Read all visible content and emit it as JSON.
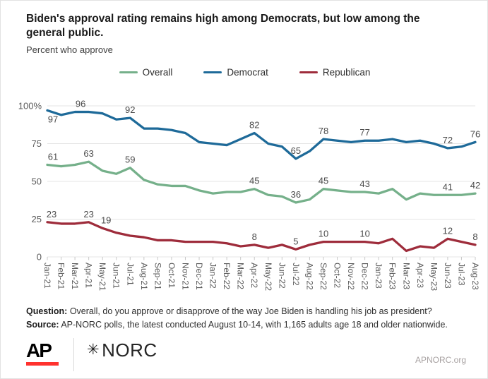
{
  "header": {
    "title": "Biden's approval rating remains high among Democrats, but low among the general public.",
    "subtitle": "Percent who approve"
  },
  "legend": [
    {
      "label": "Overall",
      "color": "#75B08A"
    },
    {
      "label": "Democrat",
      "color": "#1E6A99"
    },
    {
      "label": "Republican",
      "color": "#9E2C3B"
    }
  ],
  "chart_data": {
    "type": "line",
    "title": "Biden's approval rating remains high among Democrats, but low among the general public.",
    "subtitle": "Percent who approve",
    "xlabel": "",
    "ylabel": "Percent who approve",
    "ylim": [
      0,
      100
    ],
    "ytick_values": [
      100,
      75,
      50,
      25,
      0
    ],
    "ytick_labels": [
      "100%",
      "75",
      "50",
      "25",
      "0"
    ],
    "grid": "horizontal",
    "legend_position": "top-center",
    "x_label_rotation": 90,
    "categories": [
      "Jan-21",
      "Feb-21",
      "Mar-21",
      "Apr-21",
      "May-21",
      "Jun-21",
      "Jul-21",
      "Aug-21",
      "Sep-21",
      "Oct-21",
      "Nov-21",
      "Dec-21",
      "Jan-22",
      "Feb-22",
      "Mar-22",
      "Apr-22",
      "May-22",
      "Jun-22",
      "Jul-22",
      "Aug-22",
      "Sep-22",
      "Oct-22",
      "Nov-22",
      "Dec-22",
      "Jan-23",
      "Feb-23",
      "Mar-23",
      "Apr-23",
      "May-23",
      "Jun-23",
      "Jul-23",
      "Aug-23"
    ],
    "series": [
      {
        "name": "Overall",
        "color": "#75B08A",
        "values": [
          61,
          60,
          61,
          63,
          57,
          55,
          59,
          51,
          48,
          47,
          47,
          44,
          42,
          43,
          43,
          45,
          41,
          40,
          36,
          38,
          45,
          44,
          43,
          43,
          42,
          45,
          38,
          42,
          41,
          41,
          41,
          42
        ]
      },
      {
        "name": "Democrat",
        "color": "#1E6A99",
        "values": [
          97,
          94,
          96,
          96,
          95,
          91,
          92,
          85,
          85,
          84,
          82,
          76,
          75,
          74,
          78,
          82,
          75,
          73,
          65,
          70,
          78,
          77,
          76,
          77,
          77,
          78,
          76,
          77,
          75,
          72,
          73,
          76
        ]
      },
      {
        "name": "Republican",
        "color": "#9E2C3B",
        "values": [
          23,
          22,
          22,
          23,
          19,
          16,
          14,
          13,
          11,
          11,
          10,
          10,
          10,
          9,
          7,
          8,
          6,
          8,
          5,
          8,
          10,
          10,
          10,
          10,
          9,
          12,
          4,
          7,
          6,
          12,
          10,
          8
        ]
      }
    ],
    "point_labels": [
      {
        "series": "Overall",
        "category": "Jan-21",
        "value": 61,
        "dx": 8
      },
      {
        "series": "Overall",
        "category": "Apr-21",
        "value": 63
      },
      {
        "series": "Overall",
        "category": "Jul-21",
        "value": 59
      },
      {
        "series": "Overall",
        "category": "Apr-22",
        "value": 45
      },
      {
        "series": "Overall",
        "category": "Jul-22",
        "value": 36
      },
      {
        "series": "Overall",
        "category": "Sep-22",
        "value": 45
      },
      {
        "series": "Overall",
        "category": "Dec-22",
        "value": 43
      },
      {
        "series": "Overall",
        "category": "Jun-23",
        "value": 41
      },
      {
        "series": "Overall",
        "category": "Aug-23",
        "value": 42
      },
      {
        "series": "Democrat",
        "category": "Jan-21",
        "value": 97,
        "dx": 8,
        "placement": "below"
      },
      {
        "series": "Democrat",
        "category": "Mar-21",
        "value": 96,
        "dx": 8
      },
      {
        "series": "Democrat",
        "category": "Jul-21",
        "value": 92
      },
      {
        "series": "Democrat",
        "category": "Apr-22",
        "value": 82
      },
      {
        "series": "Democrat",
        "category": "Jul-22",
        "value": 65
      },
      {
        "series": "Democrat",
        "category": "Sep-22",
        "value": 78
      },
      {
        "series": "Democrat",
        "category": "Dec-22",
        "value": 77
      },
      {
        "series": "Democrat",
        "category": "Jun-23",
        "value": 72
      },
      {
        "series": "Democrat",
        "category": "Aug-23",
        "value": 76
      },
      {
        "series": "Republican",
        "category": "Jan-21",
        "value": 23,
        "dx": 6
      },
      {
        "series": "Republican",
        "category": "Apr-21",
        "value": 23
      },
      {
        "series": "Republican",
        "category": "May-21",
        "value": 19,
        "dx": 5
      },
      {
        "series": "Republican",
        "category": "Apr-22",
        "value": 8
      },
      {
        "series": "Republican",
        "category": "Jul-22",
        "value": 5
      },
      {
        "series": "Republican",
        "category": "Sep-22",
        "value": 10
      },
      {
        "series": "Republican",
        "category": "Dec-22",
        "value": 10
      },
      {
        "series": "Republican",
        "category": "Jun-23",
        "value": 12
      },
      {
        "series": "Republican",
        "category": "Aug-23",
        "value": 8
      }
    ]
  },
  "footnote": {
    "question_label": "Question:",
    "question_text": "Overall, do you approve or disapprove of the way Joe Biden is handling his job as president?",
    "source_label": "Source:",
    "source_text": "AP-NORC polls, the latest conducted August 10-14, with 1,165 adults age 18 and older nationwide."
  },
  "footer": {
    "ap_label": "AP",
    "norc_star": "✳",
    "norc_label": "NORC",
    "site_label": "APNORC.org"
  },
  "colors": {
    "grid": "#E4E4E4",
    "tick": "#C8C8C8",
    "axis_text": "#5a5a5a",
    "data_label": "#4c4c4c",
    "ap_red": "#FF322E"
  }
}
